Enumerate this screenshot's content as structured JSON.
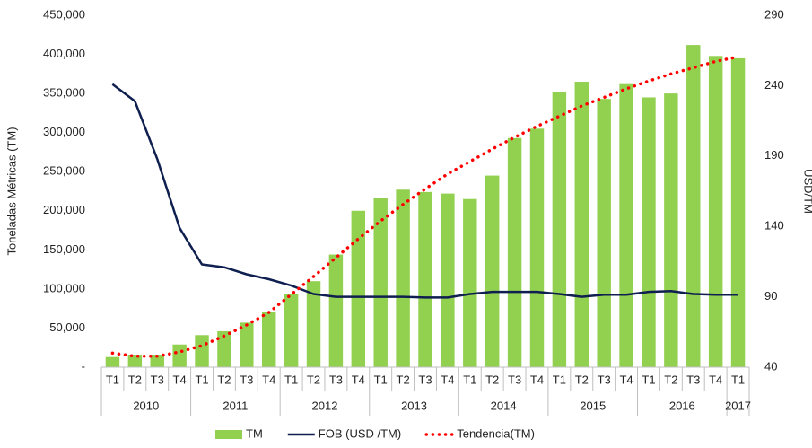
{
  "chart_data": {
    "type": "bar_line",
    "y_label": "Toneladas Métricas (TM)",
    "y2_label": "USD/TM",
    "groups": [
      {
        "label": "2010",
        "categories": [
          "T1",
          "T2",
          "T3",
          "T4"
        ]
      },
      {
        "label": "2011",
        "categories": [
          "T1",
          "T2",
          "T3",
          "T4"
        ]
      },
      {
        "label": "2012",
        "categories": [
          "T1",
          "T2",
          "T3",
          "T4"
        ]
      },
      {
        "label": "2013",
        "categories": [
          "T1",
          "T2",
          "T3",
          "T4"
        ]
      },
      {
        "label": "2014",
        "categories": [
          "T1",
          "T2",
          "T3",
          "T4"
        ]
      },
      {
        "label": "2015",
        "categories": [
          "T1",
          "T2",
          "T3",
          "T4"
        ]
      },
      {
        "label": "2016",
        "categories": [
          "T1",
          "T2",
          "T3",
          "T4"
        ]
      },
      {
        "label": "2017",
        "categories": [
          "T1"
        ]
      }
    ],
    "series": [
      {
        "name": "TM",
        "type": "bar",
        "color": "#92d050",
        "values": [
          13000,
          16000,
          16000,
          29000,
          41000,
          46000,
          57000,
          71000,
          93000,
          110000,
          144000,
          200000,
          216000,
          227000,
          224000,
          222000,
          215000,
          245000,
          293000,
          305000,
          352000,
          365000,
          343000,
          362000,
          345000,
          350000,
          412000,
          398000,
          395000
        ]
      },
      {
        "name": "FOB (USD /TM)",
        "type": "line",
        "axis": "y2",
        "color": "#0f1f4f",
        "values": [
          241,
          229,
          188,
          139,
          113,
          111,
          106,
          102.5,
          98,
          92,
          90,
          90,
          90,
          90,
          89.5,
          89.5,
          92,
          93.5,
          93.5,
          93.5,
          92,
          90,
          91.5,
          91.5,
          93.5,
          94,
          92,
          91.5,
          91.5
        ]
      },
      {
        "name": "Tendencia(TM)",
        "type": "trend",
        "color": "#ff0000",
        "values": [
          18000,
          14000,
          14000,
          19500,
          27500,
          40000,
          54000,
          70000,
          93000,
          116000,
          140000,
          164000,
          187000,
          208000,
          228000,
          247000,
          263000,
          279000,
          294000,
          308000,
          321000,
          334000,
          345000,
          356000,
          366000,
          375000,
          383000,
          391000,
          397000
        ]
      }
    ],
    "ylim": [
      0,
      450000
    ],
    "yticks": [
      {
        "value": 0,
        "label": "-"
      },
      {
        "value": 50000,
        "label": "50,000"
      },
      {
        "value": 100000,
        "label": "100,000"
      },
      {
        "value": 150000,
        "label": "150,000"
      },
      {
        "value": 200000,
        "label": "200,000"
      },
      {
        "value": 250000,
        "label": "250,000"
      },
      {
        "value": 300000,
        "label": "300,000"
      },
      {
        "value": 350000,
        "label": "350,000"
      },
      {
        "value": 400000,
        "label": "400,000"
      },
      {
        "value": 450000,
        "label": "450,000"
      }
    ],
    "y2lim": [
      40,
      290
    ],
    "y2ticks": [
      40,
      90,
      140,
      190,
      240,
      290
    ],
    "grid": false,
    "legend": "bottom"
  }
}
